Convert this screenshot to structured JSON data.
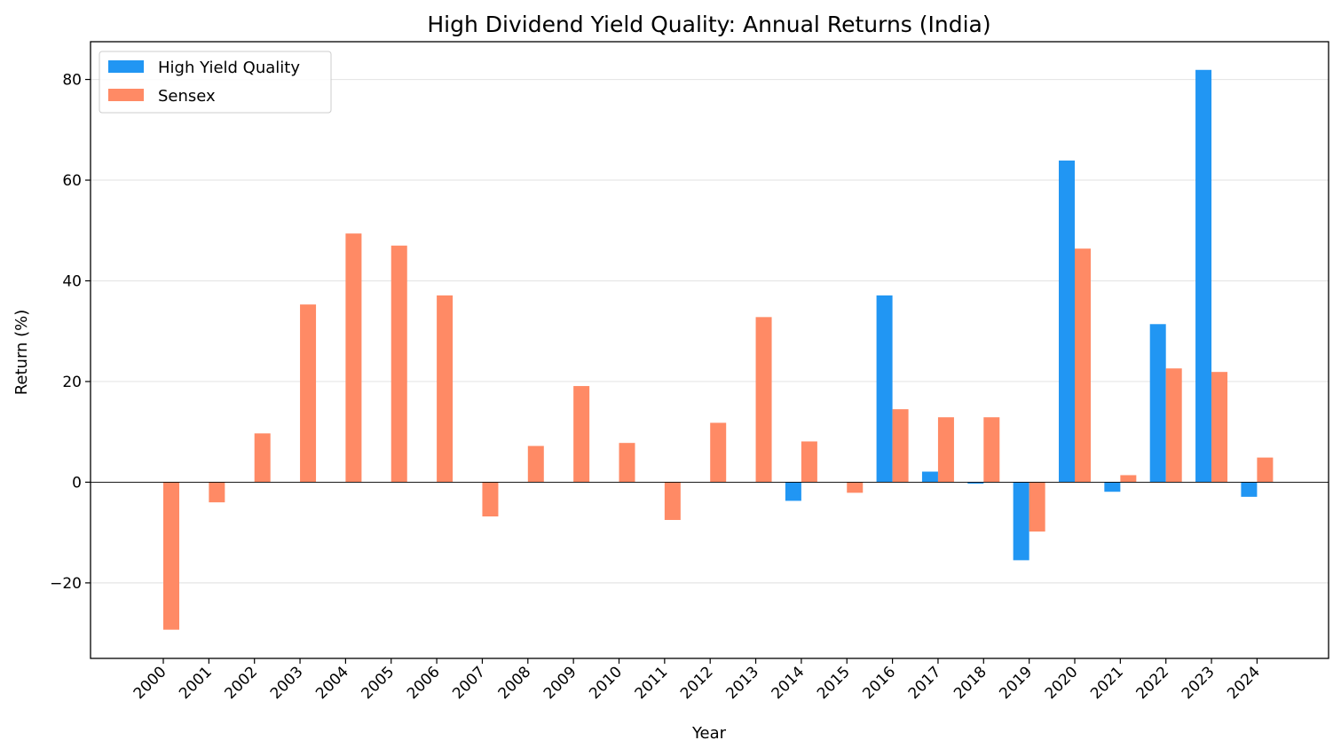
{
  "chart_data": {
    "type": "bar",
    "title": "High Dividend Yield Quality: Annual Returns (India)",
    "xlabel": "Year",
    "ylabel": "Return (%)",
    "ylim": [
      -35,
      87.5
    ],
    "yticks": [
      -20,
      0,
      20,
      40,
      60,
      80
    ],
    "grid": "y",
    "legend_position": "top-left",
    "categories": [
      "2000",
      "2001",
      "2002",
      "2003",
      "2004",
      "2005",
      "2006",
      "2007",
      "2008",
      "2009",
      "2010",
      "2011",
      "2012",
      "2013",
      "2014",
      "2015",
      "2016",
      "2017",
      "2018",
      "2019",
      "2020",
      "2021",
      "2022",
      "2023",
      "2024"
    ],
    "series": [
      {
        "name": "High Yield Quality",
        "color": "#2196F3",
        "values": [
          null,
          null,
          null,
          null,
          null,
          null,
          null,
          null,
          null,
          null,
          null,
          null,
          null,
          null,
          -3.7,
          null,
          37.1,
          2.1,
          -0.3,
          -15.5,
          63.9,
          -1.9,
          31.4,
          81.9,
          -2.9
        ]
      },
      {
        "name": "Sensex",
        "color": "#FF8A65",
        "values": [
          -29.3,
          -4.0,
          9.7,
          35.3,
          49.4,
          47.0,
          37.1,
          -6.8,
          7.2,
          19.1,
          7.8,
          -7.5,
          11.8,
          32.8,
          8.1,
          -2.1,
          14.5,
          12.9,
          12.9,
          -9.8,
          46.4,
          1.4,
          22.6,
          21.9,
          4.9
        ]
      }
    ]
  }
}
